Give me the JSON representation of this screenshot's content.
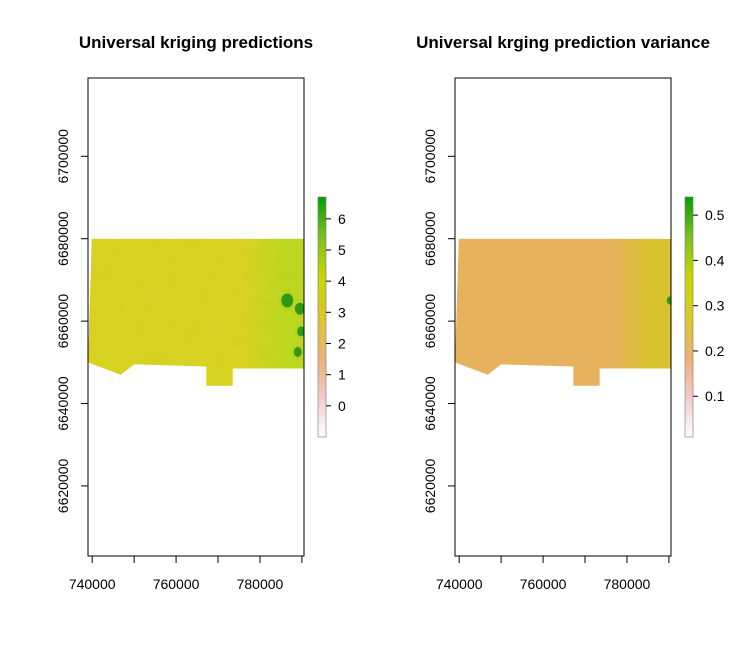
{
  "chart_data": [
    {
      "type": "heatmap",
      "title": "Universal kriging predictions",
      "xlabel": "",
      "ylabel": "",
      "xlim": [
        739000,
        790500
      ],
      "ylim": [
        6603000,
        6719000
      ],
      "x_ticks": [
        740000,
        750000,
        760000,
        770000,
        780000,
        790000
      ],
      "x_tick_labels": [
        "740000",
        "",
        "760000",
        "",
        "780000",
        ""
      ],
      "y_ticks": [
        6620000,
        6640000,
        6660000,
        6680000,
        6700000
      ],
      "y_tick_labels": [
        "6620000",
        "6640000",
        "6660000",
        "6680000",
        "6700000"
      ],
      "legend": {
        "position": "right",
        "min": -1.0,
        "max": 6.7,
        "ticks": [
          0,
          1,
          2,
          3,
          4,
          5,
          6
        ],
        "tick_labels": [
          "0",
          "1",
          "2",
          "3",
          "4",
          "5",
          "6"
        ],
        "colors": [
          "#ffffff",
          "#f4c9c9",
          "#ebb173",
          "#d9c82a",
          "#c8d600",
          "#7ec020",
          "#00a000"
        ]
      },
      "field": {
        "dominant_value": 2.9,
        "high_value_region": "east edge",
        "max_value": 6.6,
        "colors": {
          "base": "#d6cf1c",
          "mid": "#b8d51a",
          "high": "#2e9a14"
        }
      }
    },
    {
      "type": "heatmap",
      "title": "Universal krging prediction variance",
      "xlabel": "",
      "ylabel": "",
      "xlim": [
        739000,
        790500
      ],
      "ylim": [
        6603000,
        6719000
      ],
      "x_ticks": [
        740000,
        750000,
        760000,
        770000,
        780000,
        790000
      ],
      "x_tick_labels": [
        "740000",
        "",
        "760000",
        "",
        "780000",
        ""
      ],
      "y_ticks": [
        6620000,
        6640000,
        6660000,
        6680000,
        6700000
      ],
      "y_tick_labels": [
        "6620000",
        "6640000",
        "6660000",
        "6680000",
        "6700000"
      ],
      "legend": {
        "position": "right",
        "min": 0.01,
        "max": 0.54,
        "ticks": [
          0.1,
          0.2,
          0.3,
          0.4,
          0.5
        ],
        "tick_labels": [
          "0.1",
          "0.2",
          "0.3",
          "0.4",
          "0.5"
        ],
        "colors": [
          "#ffffff",
          "#f4c9c9",
          "#ebb173",
          "#d9c82a",
          "#c8d600",
          "#7ec020",
          "#00a000"
        ]
      },
      "field": {
        "dominant_value": 0.19,
        "high_value_region": "east edge",
        "max_value": 0.53,
        "colors": {
          "base": "#e7b25e",
          "mid": "#d8c22e",
          "high": "#2e9a14"
        }
      }
    }
  ]
}
